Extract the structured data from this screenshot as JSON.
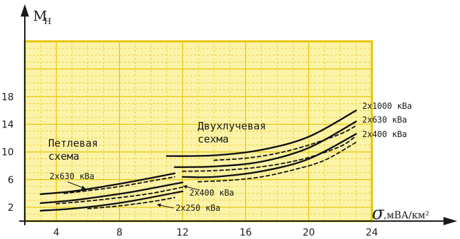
{
  "chart_data": {
    "type": "line",
    "title": "",
    "ylabel": "M",
    "ylabel_sub": "Н",
    "xlabel_symbol": "σ",
    "xlabel_unit": ",мВА/км²",
    "xlim": [
      2,
      24
    ],
    "ylim": [
      0,
      26
    ],
    "x_ticks": [
      4,
      8,
      12,
      16,
      20,
      24
    ],
    "y_ticks": [
      2,
      6,
      10,
      14,
      18
    ],
    "x_tick_labels": [
      "4",
      "8",
      "12",
      "16",
      "20",
      "24"
    ],
    "y_tick_labels": [
      "2",
      "6",
      "10",
      "14",
      "18"
    ],
    "background": "#fbf3a8",
    "grid_color": "#e6c400",
    "groups": [
      {
        "label_lines": [
          "Петлевая",
          "схема"
        ]
      },
      {
        "label_lines": [
          "Двухлучевая",
          "сехма"
        ]
      }
    ],
    "series": [
      {
        "name": "2х630 кВа",
        "style": "solid",
        "x": [
          3,
          5,
          7,
          9,
          11.5
        ],
        "y": [
          3.9,
          4.3,
          5.0,
          5.8,
          6.9
        ]
      },
      {
        "name": "",
        "style": "dashed",
        "x": [
          4.5,
          6,
          8,
          10,
          11.5
        ],
        "y": [
          4.0,
          4.4,
          5.0,
          5.8,
          6.4
        ]
      },
      {
        "name": "2х400 кВа",
        "style": "solid",
        "x": [
          3,
          5,
          7,
          9,
          12
        ],
        "y": [
          2.6,
          3.0,
          3.6,
          4.3,
          5.6
        ]
      },
      {
        "name": "",
        "style": "dashed",
        "x": [
          4,
          6,
          8,
          10,
          12
        ],
        "y": [
          2.5,
          2.9,
          3.4,
          4.0,
          4.9
        ]
      },
      {
        "name": "2х250 кВа",
        "style": "solid",
        "x": [
          3,
          5,
          7,
          9,
          12
        ],
        "y": [
          1.5,
          1.8,
          2.3,
          3.0,
          4.3
        ]
      },
      {
        "name": "",
        "style": "dashed",
        "x": [
          6,
          8,
          10,
          11.5
        ],
        "y": [
          1.8,
          2.2,
          2.8,
          3.4
        ]
      },
      {
        "name": "2х1000 кВа",
        "style": "solid",
        "x": [
          11,
          14,
          17,
          20,
          23
        ],
        "y": [
          9.4,
          9.5,
          10.3,
          12.2,
          16.0
        ]
      },
      {
        "name": "",
        "style": "dashed",
        "x": [
          14,
          16,
          18,
          20,
          22,
          23
        ],
        "y": [
          8.8,
          9.1,
          9.8,
          11.0,
          12.6,
          13.8
        ]
      },
      {
        "name": "2х630 кВа",
        "style": "solid",
        "x": [
          11.5,
          14,
          17,
          20,
          23
        ],
        "y": [
          7.8,
          7.9,
          8.6,
          10.6,
          14.4
        ]
      },
      {
        "name": "",
        "style": "dashed",
        "x": [
          12,
          14,
          16,
          18,
          20,
          22,
          23
        ],
        "y": [
          7.2,
          7.3,
          7.6,
          8.2,
          9.2,
          10.8,
          12.3
        ]
      },
      {
        "name": "2х400 кВа",
        "style": "solid",
        "x": [
          12,
          14,
          17,
          20,
          23
        ],
        "y": [
          6.4,
          6.4,
          7.2,
          9.0,
          12.6
        ]
      },
      {
        "name": "",
        "style": "dashed",
        "x": [
          13,
          15,
          17,
          19,
          21,
          23
        ],
        "y": [
          5.7,
          5.9,
          6.4,
          7.4,
          8.8,
          11.4
        ]
      }
    ]
  }
}
